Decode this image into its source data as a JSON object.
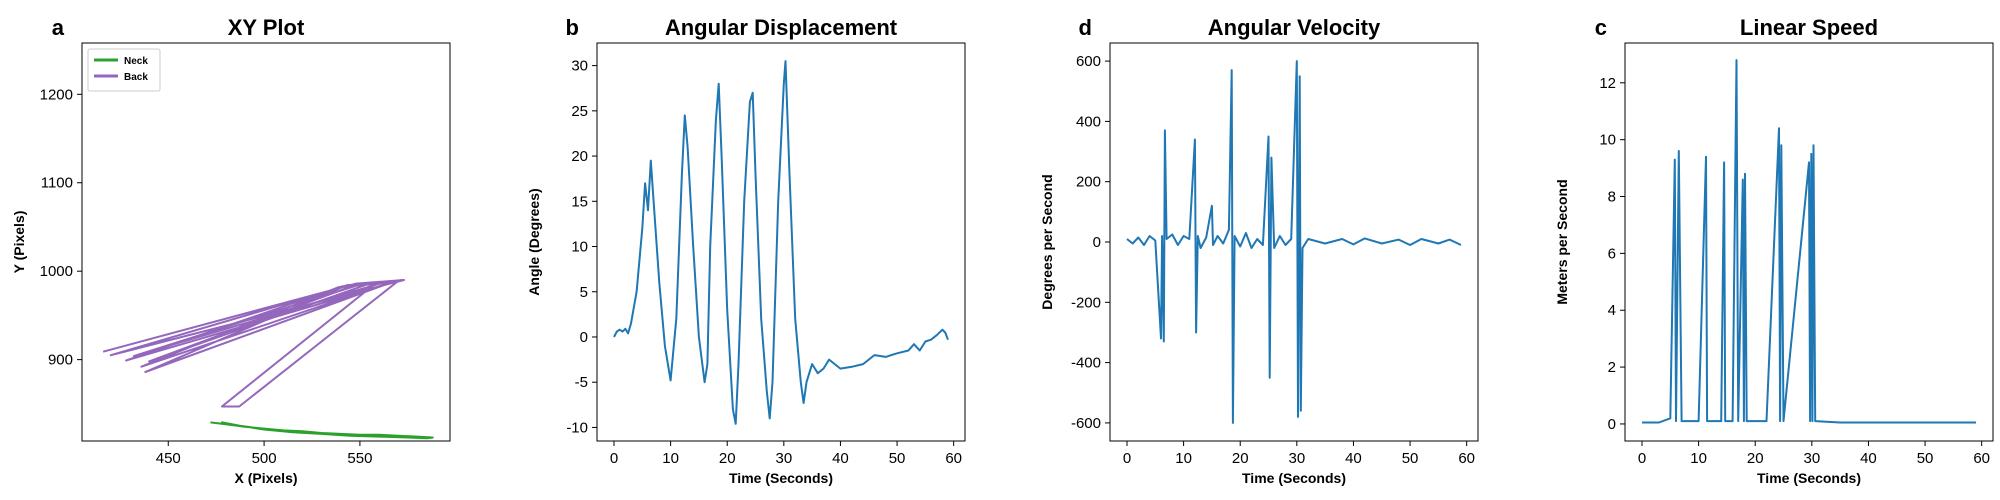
{
  "chart_data": [
    {
      "panel_letter": "a",
      "type": "line",
      "title": "XY Plot",
      "xlabel": "X (Pixels)",
      "ylabel": "Y (Pixels)",
      "xlim": [
        405,
        597
      ],
      "ylim": [
        808,
        1258
      ],
      "xticks": [
        450,
        500,
        550
      ],
      "yticks": [
        900,
        1000,
        1100,
        1200
      ],
      "legend": "top-left",
      "series": [
        {
          "name": "Neck",
          "color": "#2ca02c",
          "points": [
            [
              472,
              829
            ],
            [
              480,
              827
            ],
            [
              490,
              824
            ],
            [
              500,
              822
            ],
            [
              510,
              820
            ],
            [
              520,
              819
            ],
            [
              530,
              817
            ],
            [
              540,
              816
            ],
            [
              550,
              815
            ],
            [
              560,
              815
            ],
            [
              570,
              814
            ],
            [
              580,
              813
            ],
            [
              588,
              812
            ],
            [
              585,
              811
            ],
            [
              575,
              812
            ],
            [
              565,
              813
            ],
            [
              555,
              814
            ],
            [
              545,
              815
            ],
            [
              535,
              816
            ],
            [
              525,
              818
            ],
            [
              515,
              819
            ],
            [
              505,
              821
            ],
            [
              495,
              823
            ],
            [
              485,
              826
            ],
            [
              478,
              829
            ],
            [
              488,
              825
            ],
            [
              500,
              821
            ],
            [
              515,
              818
            ],
            [
              530,
              816
            ],
            [
              545,
              814
            ],
            [
              560,
              813
            ],
            [
              575,
              812
            ],
            [
              586,
              812
            ]
          ]
        },
        {
          "name": "Back",
          "color": "#9467bd",
          "points": [
            [
              416,
              909
            ],
            [
              548,
              986
            ],
            [
              573,
              990
            ],
            [
              420,
              905
            ],
            [
              544,
              984
            ],
            [
              570,
              989
            ],
            [
              428,
              899
            ],
            [
              541,
              983
            ],
            [
              567,
              988
            ],
            [
              436,
              892
            ],
            [
              539,
              982
            ],
            [
              566,
              987
            ],
            [
              438,
              886
            ],
            [
              543,
              984
            ],
            [
              570,
              989
            ],
            [
              487,
              847
            ],
            [
              478,
              847
            ],
            [
              558,
              986
            ],
            [
              562,
              987
            ],
            [
              432,
              904
            ],
            [
              550,
              985
            ],
            [
              555,
              986
            ],
            [
              440,
              898
            ],
            [
              547,
              984
            ],
            [
              572,
              990
            ]
          ]
        }
      ]
    },
    {
      "panel_letter": "b",
      "type": "line",
      "title": "Angular Displacement",
      "xlabel": "Time (Seconds)",
      "ylabel": "Angle (Degrees)",
      "xlim": [
        -3,
        62
      ],
      "ylim": [
        -11.5,
        32.5
      ],
      "xticks": [
        0,
        10,
        20,
        30,
        40,
        50,
        60
      ],
      "yticks": [
        -10,
        -5,
        0,
        5,
        10,
        15,
        20,
        25,
        30
      ],
      "legend": "none",
      "series": [
        {
          "color": "#1f77b4",
          "points": [
            [
              0,
              0
            ],
            [
              0.5,
              0.6
            ],
            [
              1,
              0.8
            ],
            [
              1.5,
              0.6
            ],
            [
              2,
              0.9
            ],
            [
              2.5,
              0.4
            ],
            [
              3,
              1.5
            ],
            [
              4,
              5
            ],
            [
              5,
              12
            ],
            [
              5.5,
              17
            ],
            [
              6,
              14
            ],
            [
              6.5,
              19.5
            ],
            [
              7,
              15
            ],
            [
              8,
              6
            ],
            [
              9,
              -1
            ],
            [
              10,
              -4.8
            ],
            [
              11,
              2
            ],
            [
              12,
              18
            ],
            [
              12.5,
              24.5
            ],
            [
              13,
              21
            ],
            [
              14,
              10
            ],
            [
              15,
              0
            ],
            [
              16,
              -5
            ],
            [
              16.5,
              -3
            ],
            [
              17,
              10
            ],
            [
              18,
              24
            ],
            [
              18.5,
              28
            ],
            [
              19,
              20
            ],
            [
              20,
              3
            ],
            [
              21,
              -8
            ],
            [
              21.5,
              -9.6
            ],
            [
              22,
              -3
            ],
            [
              23,
              15
            ],
            [
              24,
              26
            ],
            [
              24.5,
              27
            ],
            [
              25,
              18
            ],
            [
              26,
              2
            ],
            [
              27,
              -6
            ],
            [
              27.5,
              -9
            ],
            [
              28,
              -5
            ],
            [
              29,
              15
            ],
            [
              30,
              28
            ],
            [
              30.3,
              30.5
            ],
            [
              31,
              18
            ],
            [
              32,
              2
            ],
            [
              33,
              -5
            ],
            [
              33.5,
              -7.3
            ],
            [
              34,
              -5
            ],
            [
              35,
              -3
            ],
            [
              36,
              -4
            ],
            [
              37,
              -3.5
            ],
            [
              38,
              -2.5
            ],
            [
              40,
              -3.5
            ],
            [
              42,
              -3.3
            ],
            [
              44,
              -3
            ],
            [
              46,
              -2
            ],
            [
              48,
              -2.2
            ],
            [
              50,
              -1.8
            ],
            [
              52,
              -1.5
            ],
            [
              53,
              -0.8
            ],
            [
              54,
              -1.5
            ],
            [
              55,
              -0.5
            ],
            [
              56,
              -0.3
            ],
            [
              57,
              0.2
            ],
            [
              58,
              0.8
            ],
            [
              58.5,
              0.5
            ],
            [
              59,
              -0.3
            ]
          ]
        }
      ]
    },
    {
      "panel_letter": "d",
      "type": "line",
      "title": "Angular Velocity",
      "xlabel": "Time (Seconds)",
      "ylabel": "Degrees per Second",
      "xlim": [
        -3,
        62
      ],
      "ylim": [
        -660,
        660
      ],
      "xticks": [
        0,
        10,
        20,
        30,
        40,
        50,
        60
      ],
      "yticks": [
        -600,
        -400,
        -200,
        0,
        200,
        400,
        600
      ],
      "legend": "none",
      "series": [
        {
          "color": "#1f77b4",
          "points": [
            [
              0,
              10
            ],
            [
              1,
              -5
            ],
            [
              2,
              15
            ],
            [
              3,
              -10
            ],
            [
              4,
              20
            ],
            [
              5,
              5
            ],
            [
              6,
              -320
            ],
            [
              6.2,
              20
            ],
            [
              6.5,
              -330
            ],
            [
              6.7,
              370
            ],
            [
              7,
              10
            ],
            [
              8,
              25
            ],
            [
              9,
              -10
            ],
            [
              10,
              20
            ],
            [
              11,
              10
            ],
            [
              12,
              340
            ],
            [
              12.2,
              -300
            ],
            [
              12.5,
              20
            ],
            [
              13,
              -20
            ],
            [
              14,
              15
            ],
            [
              15,
              120
            ],
            [
              15.2,
              -10
            ],
            [
              16,
              20
            ],
            [
              17,
              -5
            ],
            [
              18,
              40
            ],
            [
              18.5,
              570
            ],
            [
              18.7,
              -600
            ],
            [
              19,
              20
            ],
            [
              20,
              -15
            ],
            [
              21,
              30
            ],
            [
              22,
              -20
            ],
            [
              23,
              10
            ],
            [
              24,
              -10
            ],
            [
              25,
              350
            ],
            [
              25.2,
              -450
            ],
            [
              25.5,
              280
            ],
            [
              26,
              -20
            ],
            [
              27,
              20
            ],
            [
              28,
              -10
            ],
            [
              29,
              10
            ],
            [
              30,
              600
            ],
            [
              30.2,
              -580
            ],
            [
              30.5,
              550
            ],
            [
              30.7,
              -560
            ],
            [
              31,
              -20
            ],
            [
              32,
              10
            ],
            [
              35,
              -5
            ],
            [
              38,
              10
            ],
            [
              40,
              -8
            ],
            [
              42,
              12
            ],
            [
              45,
              -5
            ],
            [
              48,
              8
            ],
            [
              50,
              -10
            ],
            [
              52,
              10
            ],
            [
              55,
              -5
            ],
            [
              57,
              8
            ],
            [
              59,
              -10
            ]
          ]
        }
      ]
    },
    {
      "panel_letter": "c",
      "type": "line",
      "title": "Linear Speed",
      "xlabel": "Time (Seconds)",
      "ylabel": "Meters per Second",
      "xlim": [
        -3,
        62
      ],
      "ylim": [
        -0.6,
        13.4
      ],
      "xticks": [
        0,
        10,
        20,
        30,
        40,
        50,
        60
      ],
      "yticks": [
        0,
        2,
        4,
        6,
        8,
        10,
        12
      ],
      "legend": "none",
      "series": [
        {
          "color": "#1f77b4",
          "points": [
            [
              0,
              0.05
            ],
            [
              3,
              0.05
            ],
            [
              5,
              0.2
            ],
            [
              5.8,
              9.3
            ],
            [
              6,
              0.1
            ],
            [
              6.5,
              9.6
            ],
            [
              7,
              0.1
            ],
            [
              10,
              0.1
            ],
            [
              11.3,
              9.4
            ],
            [
              11.5,
              0.1
            ],
            [
              14,
              0.1
            ],
            [
              14.5,
              9.2
            ],
            [
              14.7,
              0.1
            ],
            [
              16,
              0.1
            ],
            [
              16.7,
              12.8
            ],
            [
              17,
              0.1
            ],
            [
              17.8,
              8.6
            ],
            [
              18,
              0.1
            ],
            [
              18.2,
              8.8
            ],
            [
              18.5,
              0.1
            ],
            [
              22,
              0.1
            ],
            [
              24.2,
              10.4
            ],
            [
              24.4,
              0.1
            ],
            [
              24.6,
              9.8
            ],
            [
              25,
              0.1
            ],
            [
              29.5,
              9.2
            ],
            [
              29.7,
              0.1
            ],
            [
              29.9,
              9.5
            ],
            [
              30.1,
              0.1
            ],
            [
              30.3,
              9.8
            ],
            [
              30.6,
              0.1
            ],
            [
              35,
              0.05
            ],
            [
              40,
              0.05
            ],
            [
              45,
              0.05
            ],
            [
              50,
              0.05
            ],
            [
              55,
              0.05
            ],
            [
              59,
              0.05
            ]
          ]
        }
      ]
    }
  ]
}
